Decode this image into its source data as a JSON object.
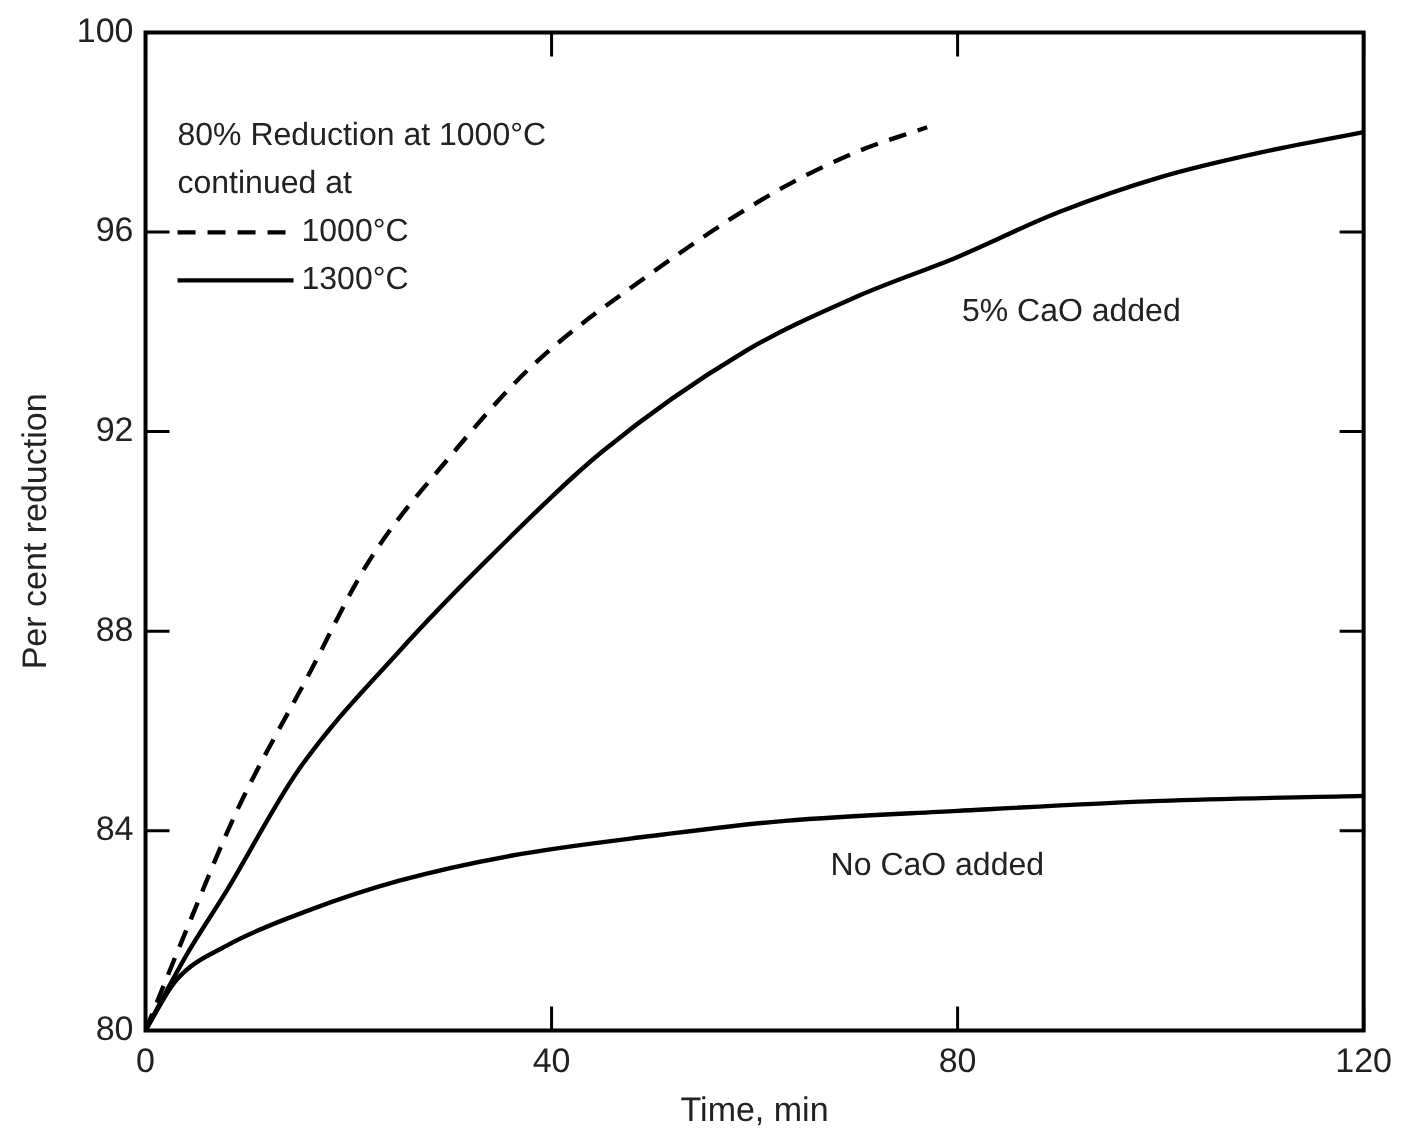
{
  "chart_data": {
    "type": "line",
    "xlabel": "Time, min",
    "ylabel": "Per cent reduction",
    "legend_title": "80% Reduction at 1000°C\ncontinued at",
    "legend": "top left",
    "grid": false,
    "marker": "none",
    "xlim": [
      0,
      120
    ],
    "xticks": [
      0,
      40,
      80,
      120
    ],
    "ylim": [
      80,
      100
    ],
    "yticks": [
      80,
      84,
      88,
      92,
      96,
      100
    ],
    "series": [
      {
        "name": "1000°C",
        "color": "#000000",
        "line_style": "dashed",
        "x": [
          0,
          4,
          9,
          16,
          22,
          30,
          38,
          50,
          62,
          70,
          77
        ],
        "values": [
          80,
          82.0,
          84.4,
          87.1,
          89.4,
          91.5,
          93.3,
          95.2,
          96.8,
          97.6,
          98.1
        ]
      },
      {
        "name": "1300°C",
        "color": "#000000",
        "line_style": "solid",
        "x": [
          0,
          4,
          8,
          15,
          25,
          34,
          45,
          59,
          70,
          80,
          90,
          100,
          110,
          120
        ],
        "values": [
          80,
          81.5,
          82.8,
          85.2,
          87.6,
          89.5,
          91.6,
          93.6,
          94.7,
          95.5,
          96.4,
          97.1,
          97.6,
          98.0
        ]
      },
      {
        "color": "#000000",
        "line_style": "solid",
        "x": [
          0,
          3,
          8,
          16,
          25,
          36,
          50,
          63,
          80,
          100,
          120
        ],
        "values": [
          80,
          81.0,
          81.7,
          82.4,
          83.0,
          83.5,
          83.9,
          84.2,
          84.4,
          84.6,
          84.7
        ]
      }
    ],
    "annotations": [
      "5% CaO added",
      "No CaO added"
    ]
  }
}
